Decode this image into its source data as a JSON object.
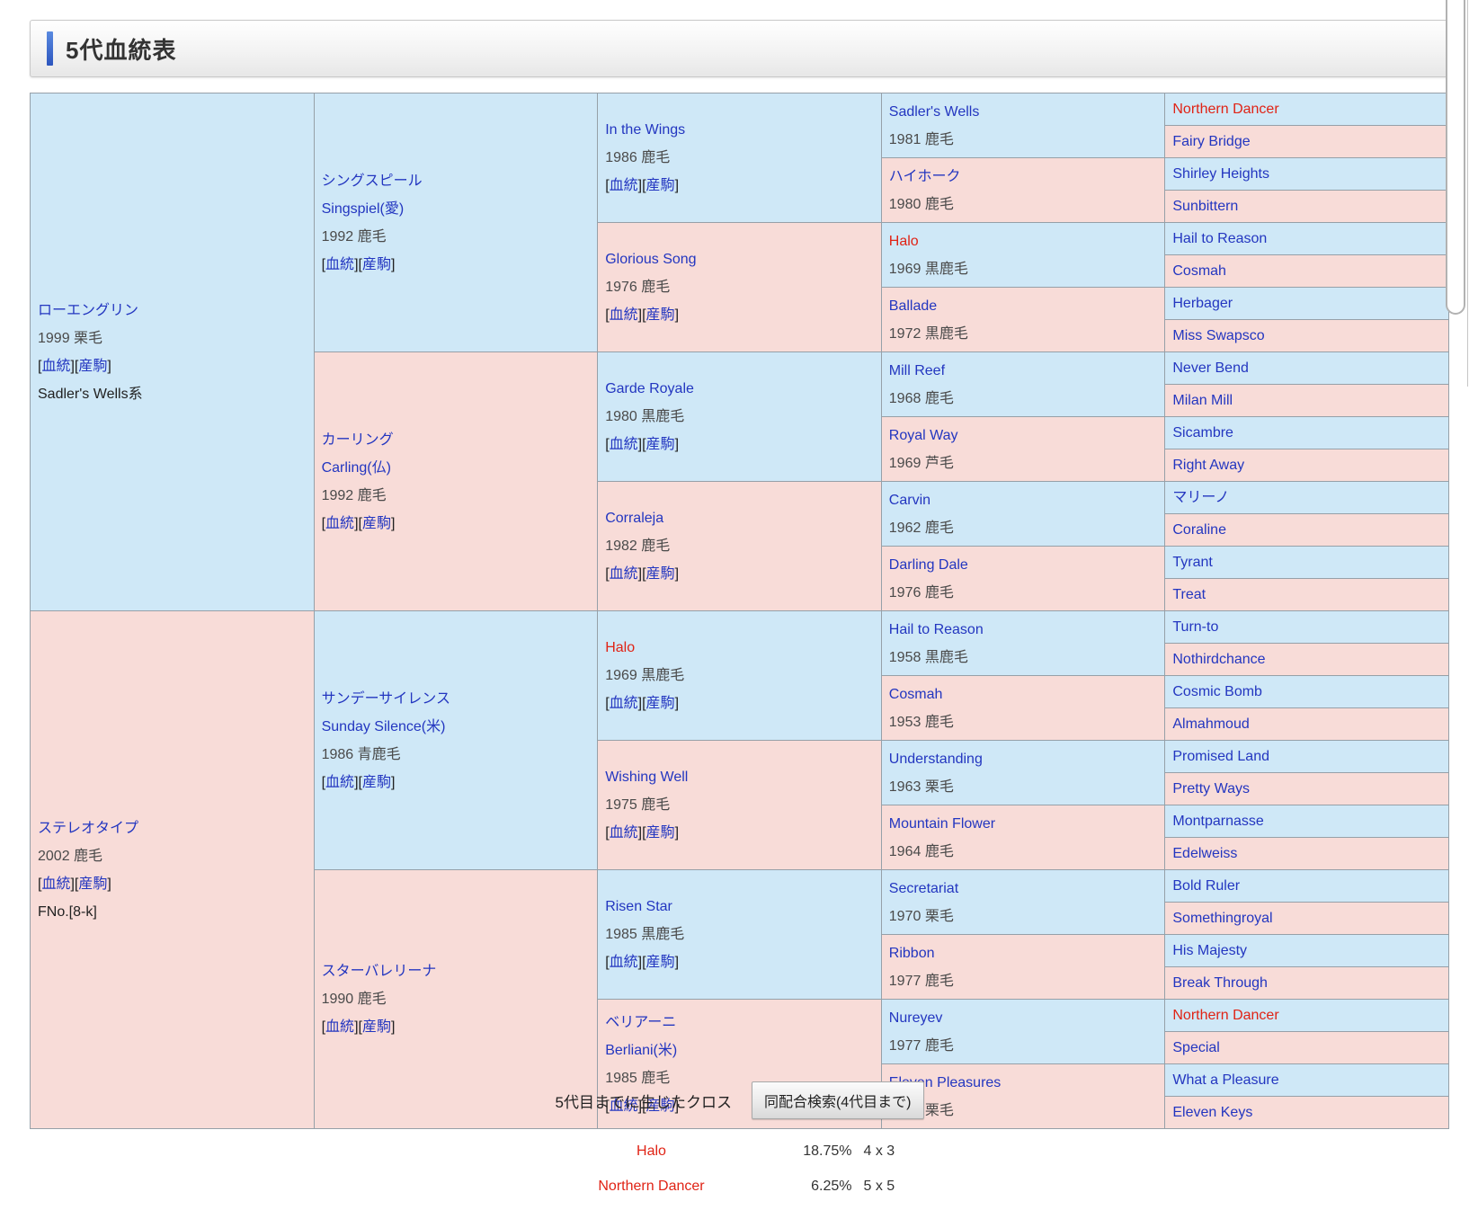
{
  "colors": {
    "male_cell_bg": "#cfe8f7",
    "female_cell_bg": "#f8dcd8",
    "link_blue": "#2336c0",
    "highlight_red": "#e02315",
    "cell_border_gray": "#96a0a8",
    "header_accent_blue": "#2c55be"
  },
  "header": {
    "title": "5代血統表"
  },
  "ui": {
    "blood_label": "血統",
    "offspring_label": "産駒"
  },
  "pedigree": {
    "generations": [
      {
        "cells": [
          {
            "name": "ローエングリン",
            "year": "1999 栗毛",
            "links": true,
            "extra": "Sadler's Wells系"
          },
          {
            "name": "ステレオタイプ",
            "year": "2002 鹿毛",
            "links": true,
            "extra": "FNo.[8-k]"
          }
        ]
      },
      {
        "cells": [
          {
            "name": "シングスピール",
            "sub": "Singspiel(愛)",
            "year": "1992 鹿毛",
            "links": true
          },
          {
            "name": "カーリング",
            "sub": "Carling(仏)",
            "year": "1992 鹿毛",
            "links": true
          },
          {
            "name": "サンデーサイレンス",
            "sub": "Sunday Silence(米)",
            "year": "1986 青鹿毛",
            "links": true
          },
          {
            "name": "スターバレリーナ",
            "year": "1990 鹿毛",
            "links": true
          }
        ]
      },
      {
        "cells": [
          {
            "name": "In the Wings",
            "year": "1986 鹿毛",
            "links": true
          },
          {
            "name": "Glorious Song",
            "year": "1976 鹿毛",
            "links": true
          },
          {
            "name": "Garde Royale",
            "year": "1980 黒鹿毛",
            "links": true
          },
          {
            "name": "Corraleja",
            "year": "1982 鹿毛",
            "links": true
          },
          {
            "name": "Halo",
            "red": true,
            "year": "1969 黒鹿毛",
            "links": true
          },
          {
            "name": "Wishing Well",
            "year": "1975 鹿毛",
            "links": true
          },
          {
            "name": "Risen Star",
            "year": "1985 黒鹿毛",
            "links": true
          },
          {
            "name": "ベリアーニ",
            "sub": "Berliani(米)",
            "year": "1985 鹿毛",
            "links": true
          }
        ]
      },
      {
        "cells": [
          {
            "name": "Sadler's Wells",
            "year": "1981 鹿毛"
          },
          {
            "name": "ハイホーク",
            "year": "1980 鹿毛"
          },
          {
            "name": "Halo",
            "red": true,
            "year": "1969 黒鹿毛"
          },
          {
            "name": "Ballade",
            "year": "1972 黒鹿毛"
          },
          {
            "name": "Mill Reef",
            "year": "1968 鹿毛"
          },
          {
            "name": "Royal Way",
            "year": "1969 芦毛"
          },
          {
            "name": "Carvin",
            "year": "1962 鹿毛"
          },
          {
            "name": "Darling Dale",
            "year": "1976 鹿毛"
          },
          {
            "name": "Hail to Reason",
            "year": "1958 黒鹿毛"
          },
          {
            "name": "Cosmah",
            "year": "1953 鹿毛"
          },
          {
            "name": "Understanding",
            "year": "1963 栗毛"
          },
          {
            "name": "Mountain Flower",
            "year": "1964 鹿毛"
          },
          {
            "name": "Secretariat",
            "year": "1970 栗毛"
          },
          {
            "name": "Ribbon",
            "year": "1977 鹿毛"
          },
          {
            "name": "Nureyev",
            "year": "1977 鹿毛"
          },
          {
            "name": "Eleven Pleasures",
            "year": "1970 栗毛"
          }
        ]
      },
      {
        "cells": [
          {
            "name": "Northern Dancer",
            "red": true
          },
          {
            "name": "Fairy Bridge"
          },
          {
            "name": "Shirley Heights"
          },
          {
            "name": "Sunbittern"
          },
          {
            "name": "Hail to Reason"
          },
          {
            "name": "Cosmah"
          },
          {
            "name": "Herbager"
          },
          {
            "name": "Miss Swapsco"
          },
          {
            "name": "Never Bend"
          },
          {
            "name": "Milan Mill"
          },
          {
            "name": "Sicambre"
          },
          {
            "name": "Right Away"
          },
          {
            "name": "マリーノ"
          },
          {
            "name": "Coraline"
          },
          {
            "name": "Tyrant"
          },
          {
            "name": "Treat"
          },
          {
            "name": "Turn-to"
          },
          {
            "name": "Nothirdchance"
          },
          {
            "name": "Cosmic Bomb"
          },
          {
            "name": "Almahmoud"
          },
          {
            "name": "Promised Land"
          },
          {
            "name": "Pretty Ways"
          },
          {
            "name": "Montparnasse"
          },
          {
            "name": "Edelweiss"
          },
          {
            "name": "Bold Ruler"
          },
          {
            "name": "Somethingroyal"
          },
          {
            "name": "His Majesty"
          },
          {
            "name": "Break Through"
          },
          {
            "name": "Northern Dancer",
            "red": true
          },
          {
            "name": "Special"
          },
          {
            "name": "What a Pleasure"
          },
          {
            "name": "Eleven Keys"
          }
        ]
      }
    ]
  },
  "cross": {
    "label": "5代目までに生じたクロス",
    "button_label": "同配合検索(4代目まで)",
    "items": [
      {
        "name": "Halo",
        "percent": "18.75%",
        "pattern": "4 x 3"
      },
      {
        "name": "Northern Dancer",
        "percent": "6.25%",
        "pattern": "5 x 5"
      }
    ]
  }
}
